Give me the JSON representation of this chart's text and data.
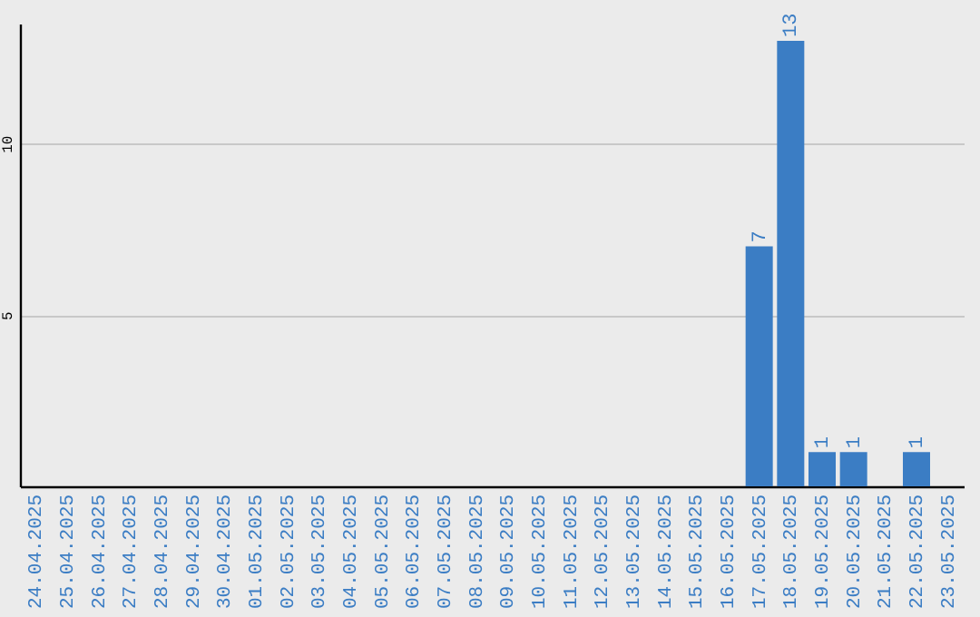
{
  "chart_data": {
    "type": "bar",
    "categories": [
      "24.04.2025",
      "25.04.2025",
      "26.04.2025",
      "27.04.2025",
      "28.04.2025",
      "29.04.2025",
      "30.04.2025",
      "01.05.2025",
      "02.05.2025",
      "03.05.2025",
      "04.05.2025",
      "05.05.2025",
      "06.05.2025",
      "07.05.2025",
      "08.05.2025",
      "09.05.2025",
      "10.05.2025",
      "11.05.2025",
      "12.05.2025",
      "13.05.2025",
      "14.05.2025",
      "15.05.2025",
      "16.05.2025",
      "17.05.2025",
      "18.05.2025",
      "19.05.2025",
      "20.05.2025",
      "21.05.2025",
      "22.05.2025",
      "23.05.2025"
    ],
    "values": [
      0,
      0,
      0,
      0,
      0,
      0,
      0,
      0,
      0,
      0,
      0,
      0,
      0,
      0,
      0,
      0,
      0,
      0,
      0,
      0,
      0,
      0,
      0,
      7,
      13,
      1,
      1,
      0,
      1,
      0
    ],
    "value_labels": [
      null,
      null,
      null,
      null,
      null,
      null,
      null,
      null,
      null,
      null,
      null,
      null,
      null,
      null,
      null,
      null,
      null,
      null,
      null,
      null,
      null,
      null,
      null,
      "7",
      "13",
      "1",
      "1",
      null,
      "1",
      null
    ],
    "color": "#3b7dc4",
    "ylim": [
      0,
      13.5
    ],
    "yticks": [
      5,
      10
    ],
    "grid": "y"
  }
}
